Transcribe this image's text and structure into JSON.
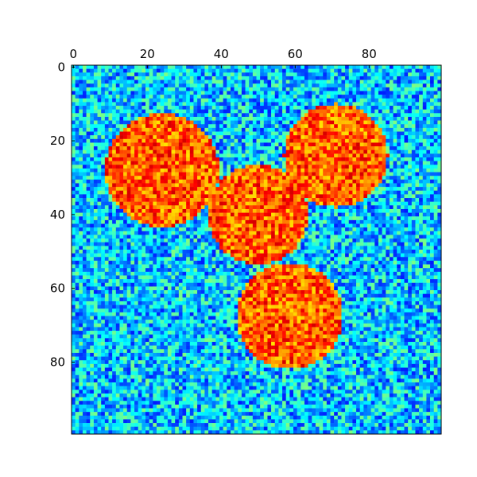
{
  "chart_data": {
    "type": "heatmap",
    "colormap": "jet",
    "grid": false,
    "rows": 100,
    "cols": 100,
    "xlim": [
      0,
      100
    ],
    "ylim": [
      100,
      0
    ],
    "x_axis_position": "top",
    "xticks": [
      0,
      20,
      40,
      60,
      80
    ],
    "yticks": [
      0,
      20,
      40,
      60,
      80
    ],
    "xtick_labels": [
      "0",
      "20",
      "40",
      "60",
      "80"
    ],
    "ytick_labels": [
      "0",
      "20",
      "40",
      "60",
      "80"
    ],
    "value_range": [
      0,
      1
    ],
    "background_noise_range": [
      0.15,
      0.5
    ],
    "disk_value_range": [
      0.65,
      0.92
    ],
    "disks": [
      {
        "cx": 24,
        "cy": 28,
        "r": 15.5
      },
      {
        "cx": 71,
        "cy": 24,
        "r": 14
      },
      {
        "cx": 50,
        "cy": 40,
        "r": 13.5
      },
      {
        "cx": 58.5,
        "cy": 67.5,
        "r": 14.5
      }
    ]
  }
}
